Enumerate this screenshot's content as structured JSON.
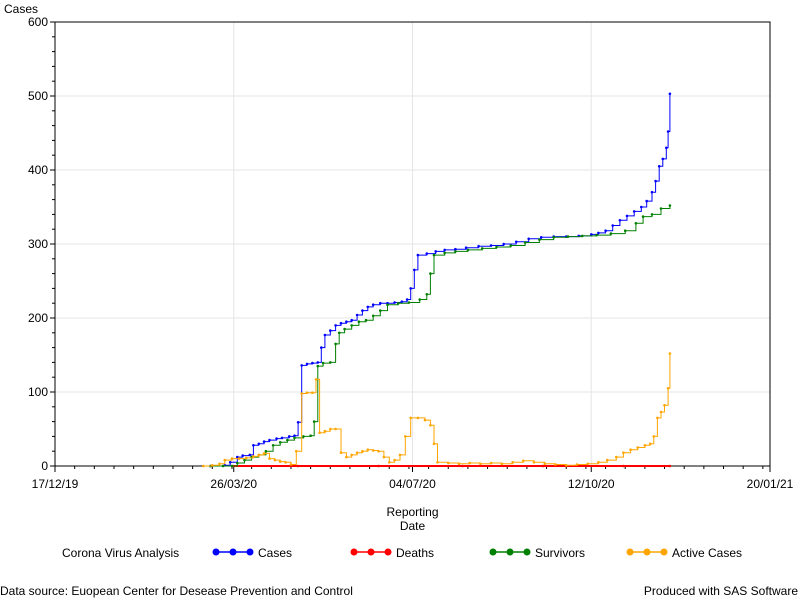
{
  "chart_data": {
    "type": "line",
    "ylabel": "Cases",
    "xlabel_lines": [
      "Reporting",
      "Date"
    ],
    "ylim": [
      0,
      600
    ],
    "yticks": [
      0,
      100,
      200,
      300,
      400,
      500,
      600
    ],
    "xlim": [
      "2019-12-17",
      "2021-01-20"
    ],
    "xticks": [
      {
        "date": "2019-12-17",
        "label": "17/12/19"
      },
      {
        "date": "2020-03-26",
        "label": "26/03/20"
      },
      {
        "date": "2020-07-04",
        "label": "04/07/20"
      },
      {
        "date": "2020-10-12",
        "label": "12/10/20"
      },
      {
        "date": "2021-01-20",
        "label": "20/01/21"
      }
    ],
    "grid": true,
    "legend_title": "Corona Virus Analysis",
    "legend_placement": "bottom",
    "series": [
      {
        "name": "Cases",
        "color": "#0000ff",
        "points": [
          [
            "2020-03-13",
            0
          ],
          [
            "2020-03-21",
            1
          ],
          [
            "2020-03-24",
            5
          ],
          [
            "2020-03-28",
            12
          ],
          [
            "2020-03-31",
            14
          ],
          [
            "2020-04-04",
            15
          ],
          [
            "2020-04-06",
            28
          ],
          [
            "2020-04-09",
            30
          ],
          [
            "2020-04-12",
            33
          ],
          [
            "2020-04-15",
            35
          ],
          [
            "2020-04-19",
            37
          ],
          [
            "2020-04-22",
            38
          ],
          [
            "2020-04-26",
            40
          ],
          [
            "2020-04-29",
            41
          ],
          [
            "2020-05-01",
            59
          ],
          [
            "2020-05-03",
            136
          ],
          [
            "2020-05-06",
            138
          ],
          [
            "2020-05-09",
            139
          ],
          [
            "2020-05-12",
            140
          ],
          [
            "2020-05-14",
            160
          ],
          [
            "2020-05-16",
            177
          ],
          [
            "2020-05-19",
            183
          ],
          [
            "2020-05-22",
            190
          ],
          [
            "2020-05-25",
            193
          ],
          [
            "2020-05-28",
            195
          ],
          [
            "2020-05-31",
            197
          ],
          [
            "2020-06-03",
            204
          ],
          [
            "2020-06-06",
            210
          ],
          [
            "2020-06-09",
            215
          ],
          [
            "2020-06-12",
            218
          ],
          [
            "2020-06-16",
            220
          ],
          [
            "2020-06-20",
            220
          ],
          [
            "2020-06-24",
            221
          ],
          [
            "2020-06-28",
            222
          ],
          [
            "2020-07-01",
            225
          ],
          [
            "2020-07-03",
            240
          ],
          [
            "2020-07-05",
            265
          ],
          [
            "2020-07-07",
            285
          ],
          [
            "2020-07-12",
            287
          ],
          [
            "2020-07-17",
            290
          ],
          [
            "2020-07-22",
            292
          ],
          [
            "2020-07-28",
            293
          ],
          [
            "2020-08-03",
            295
          ],
          [
            "2020-08-10",
            297
          ],
          [
            "2020-08-17",
            298
          ],
          [
            "2020-08-24",
            300
          ],
          [
            "2020-08-31",
            303
          ],
          [
            "2020-09-07",
            307
          ],
          [
            "2020-09-14",
            309
          ],
          [
            "2020-09-21",
            310
          ],
          [
            "2020-09-28",
            310
          ],
          [
            "2020-10-05",
            311
          ],
          [
            "2020-10-12",
            313
          ],
          [
            "2020-10-16",
            315
          ],
          [
            "2020-10-20",
            318
          ],
          [
            "2020-10-24",
            325
          ],
          [
            "2020-10-28",
            332
          ],
          [
            "2020-11-01",
            338
          ],
          [
            "2020-11-05",
            344
          ],
          [
            "2020-11-09",
            350
          ],
          [
            "2020-11-12",
            358
          ],
          [
            "2020-11-15",
            370
          ],
          [
            "2020-11-17",
            385
          ],
          [
            "2020-11-19",
            405
          ],
          [
            "2020-11-21",
            415
          ],
          [
            "2020-11-23",
            430
          ],
          [
            "2020-11-24",
            452
          ],
          [
            "2020-11-25",
            503
          ]
        ]
      },
      {
        "name": "Deaths",
        "color": "#ff0000",
        "points": [
          [
            "2020-03-25",
            0
          ],
          [
            "2020-05-01",
            0
          ],
          [
            "2020-06-15",
            0
          ],
          [
            "2020-08-01",
            0
          ],
          [
            "2020-09-15",
            0
          ],
          [
            "2020-10-30",
            0
          ],
          [
            "2020-11-25",
            0
          ]
        ]
      },
      {
        "name": "Survivors",
        "color": "#008000",
        "points": [
          [
            "2020-03-13",
            0
          ],
          [
            "2020-03-20",
            0
          ],
          [
            "2020-03-25",
            0
          ],
          [
            "2020-03-28",
            4
          ],
          [
            "2020-04-01",
            8
          ],
          [
            "2020-04-05",
            12
          ],
          [
            "2020-04-09",
            15
          ],
          [
            "2020-04-13",
            20
          ],
          [
            "2020-04-17",
            28
          ],
          [
            "2020-04-21",
            32
          ],
          [
            "2020-04-25",
            35
          ],
          [
            "2020-04-29",
            38
          ],
          [
            "2020-05-04",
            40
          ],
          [
            "2020-05-08",
            41
          ],
          [
            "2020-05-10",
            60
          ],
          [
            "2020-05-12",
            135
          ],
          [
            "2020-05-15",
            139
          ],
          [
            "2020-05-19",
            140
          ],
          [
            "2020-05-22",
            165
          ],
          [
            "2020-05-24",
            180
          ],
          [
            "2020-05-27",
            185
          ],
          [
            "2020-05-31",
            190
          ],
          [
            "2020-06-04",
            195
          ],
          [
            "2020-06-08",
            197
          ],
          [
            "2020-06-12",
            203
          ],
          [
            "2020-06-16",
            210
          ],
          [
            "2020-06-20",
            218
          ],
          [
            "2020-06-26",
            220
          ],
          [
            "2020-07-02",
            221
          ],
          [
            "2020-07-08",
            225
          ],
          [
            "2020-07-12",
            232
          ],
          [
            "2020-07-14",
            260
          ],
          [
            "2020-07-16",
            285
          ],
          [
            "2020-07-22",
            288
          ],
          [
            "2020-07-28",
            290
          ],
          [
            "2020-08-04",
            292
          ],
          [
            "2020-08-12",
            294
          ],
          [
            "2020-08-20",
            296
          ],
          [
            "2020-08-28",
            298
          ],
          [
            "2020-09-05",
            302
          ],
          [
            "2020-09-13",
            306
          ],
          [
            "2020-09-21",
            309
          ],
          [
            "2020-09-29",
            310
          ],
          [
            "2020-10-07",
            311
          ],
          [
            "2020-10-15",
            312
          ],
          [
            "2020-10-23",
            314
          ],
          [
            "2020-10-31",
            318
          ],
          [
            "2020-11-06",
            328
          ],
          [
            "2020-11-10",
            337
          ],
          [
            "2020-11-15",
            340
          ],
          [
            "2020-11-20",
            348
          ],
          [
            "2020-11-25",
            352
          ]
        ]
      },
      {
        "name": "Active Cases",
        "color": "#ffa500",
        "points": [
          [
            "2020-03-09",
            0
          ],
          [
            "2020-03-14",
            1
          ],
          [
            "2020-03-18",
            3
          ],
          [
            "2020-03-21",
            8
          ],
          [
            "2020-03-25",
            10
          ],
          [
            "2020-03-29",
            10
          ],
          [
            "2020-04-02",
            11
          ],
          [
            "2020-04-06",
            13
          ],
          [
            "2020-04-09",
            15
          ],
          [
            "2020-04-12",
            17
          ],
          [
            "2020-04-15",
            10
          ],
          [
            "2020-04-18",
            8
          ],
          [
            "2020-04-21",
            6
          ],
          [
            "2020-04-24",
            5
          ],
          [
            "2020-04-27",
            2
          ],
          [
            "2020-04-30",
            20
          ],
          [
            "2020-05-03",
            98
          ],
          [
            "2020-05-06",
            99
          ],
          [
            "2020-05-09",
            99
          ],
          [
            "2020-05-11",
            117
          ],
          [
            "2020-05-13",
            45
          ],
          [
            "2020-05-16",
            47
          ],
          [
            "2020-05-19",
            50
          ],
          [
            "2020-05-22",
            50
          ],
          [
            "2020-05-25",
            18
          ],
          [
            "2020-05-28",
            12
          ],
          [
            "2020-05-31",
            15
          ],
          [
            "2020-06-03",
            18
          ],
          [
            "2020-06-06",
            20
          ],
          [
            "2020-06-09",
            22
          ],
          [
            "2020-06-12",
            21
          ],
          [
            "2020-06-15",
            20
          ],
          [
            "2020-06-18",
            12
          ],
          [
            "2020-06-21",
            5
          ],
          [
            "2020-06-24",
            8
          ],
          [
            "2020-06-27",
            15
          ],
          [
            "2020-06-30",
            40
          ],
          [
            "2020-07-03",
            65
          ],
          [
            "2020-07-07",
            65
          ],
          [
            "2020-07-11",
            62
          ],
          [
            "2020-07-14",
            55
          ],
          [
            "2020-07-16",
            30
          ],
          [
            "2020-07-18",
            5
          ],
          [
            "2020-07-24",
            4
          ],
          [
            "2020-07-30",
            3
          ],
          [
            "2020-08-05",
            4
          ],
          [
            "2020-08-11",
            3
          ],
          [
            "2020-08-17",
            4
          ],
          [
            "2020-08-23",
            3
          ],
          [
            "2020-08-29",
            5
          ],
          [
            "2020-09-04",
            7
          ],
          [
            "2020-09-10",
            5
          ],
          [
            "2020-09-16",
            3
          ],
          [
            "2020-09-22",
            2
          ],
          [
            "2020-09-28",
            1
          ],
          [
            "2020-10-04",
            2
          ],
          [
            "2020-10-10",
            3
          ],
          [
            "2020-10-16",
            5
          ],
          [
            "2020-10-21",
            8
          ],
          [
            "2020-10-26",
            12
          ],
          [
            "2020-10-30",
            18
          ],
          [
            "2020-11-03",
            22
          ],
          [
            "2020-11-07",
            25
          ],
          [
            "2020-11-11",
            28
          ],
          [
            "2020-11-14",
            30
          ],
          [
            "2020-11-16",
            40
          ],
          [
            "2020-11-18",
            65
          ],
          [
            "2020-11-20",
            73
          ],
          [
            "2020-11-22",
            82
          ],
          [
            "2020-11-24",
            105
          ],
          [
            "2020-11-25",
            152
          ]
        ]
      }
    ]
  },
  "footer": {
    "source": "Data source: Euopean Center for Desease Prevention and Control",
    "produced": "Produced with SAS Software"
  }
}
